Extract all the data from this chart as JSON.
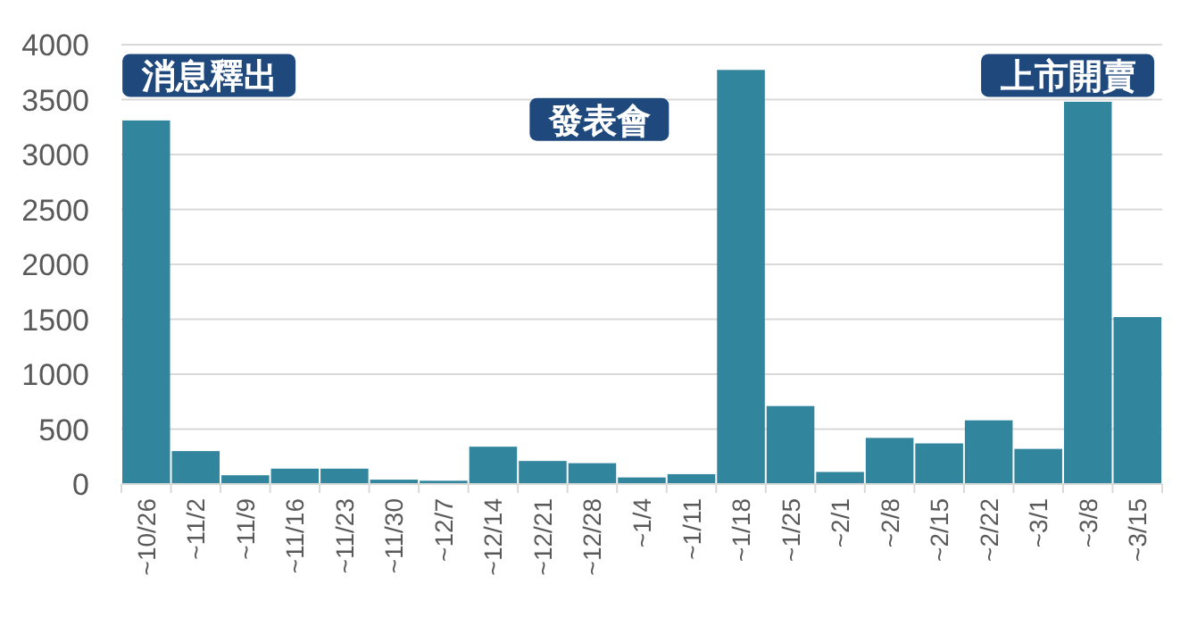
{
  "chart_data": {
    "type": "bar",
    "categories": [
      "~10/26",
      "~11/2",
      "~11/9",
      "~11/16",
      "~11/23",
      "~11/30",
      "~12/7",
      "~12/14",
      "~12/21",
      "~12/28",
      "~1/4",
      "~1/11",
      "~1/18",
      "~1/25",
      "~2/1",
      "~2/8",
      "~2/15",
      "~2/22",
      "~3/1",
      "~3/8",
      "~3/15"
    ],
    "values": [
      3310,
      300,
      80,
      140,
      140,
      40,
      30,
      340,
      210,
      190,
      60,
      90,
      3770,
      710,
      110,
      420,
      370,
      580,
      320,
      3480,
      1520
    ],
    "color": "#31859c",
    "ylim": [
      0,
      4000
    ],
    "yticks": [
      0,
      500,
      1000,
      1500,
      2000,
      2500,
      3000,
      3500,
      4000
    ],
    "grid": "y",
    "annotations": [
      "消息釋出",
      "發表會",
      "上市開賣"
    ]
  }
}
